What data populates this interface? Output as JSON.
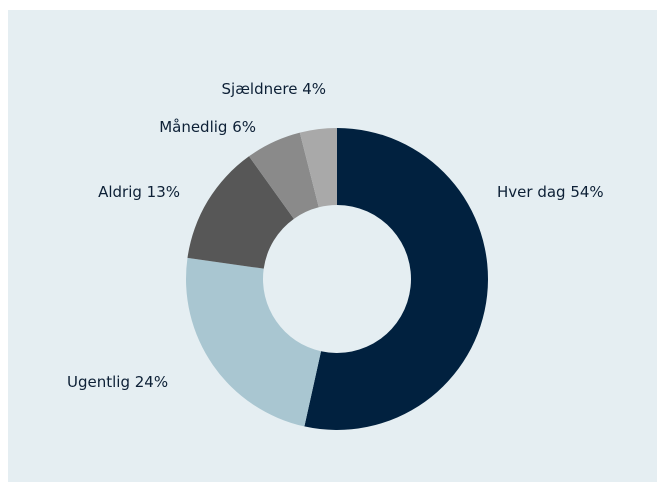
{
  "chart_data": {
    "type": "pie",
    "variant": "donut",
    "title": "",
    "slices": [
      {
        "label": "Hver dag 54%",
        "name": "Hver dag",
        "value": 54,
        "color": "#01213f"
      },
      {
        "label": "Ugentlig 24%",
        "name": "Ugentlig",
        "value": 24,
        "color": "#a9c6d1"
      },
      {
        "label": "Aldrig 13%",
        "name": "Aldrig",
        "value": 13,
        "color": "#575757"
      },
      {
        "label": "Månedlig 6%",
        "name": "Månedlig",
        "value": 6,
        "color": "#8a8a8a"
      },
      {
        "label": "Sjældnere 4%",
        "name": "Sjældnere",
        "value": 4,
        "color": "#a9a9a9"
      }
    ],
    "background_color": "#e5eef2"
  }
}
